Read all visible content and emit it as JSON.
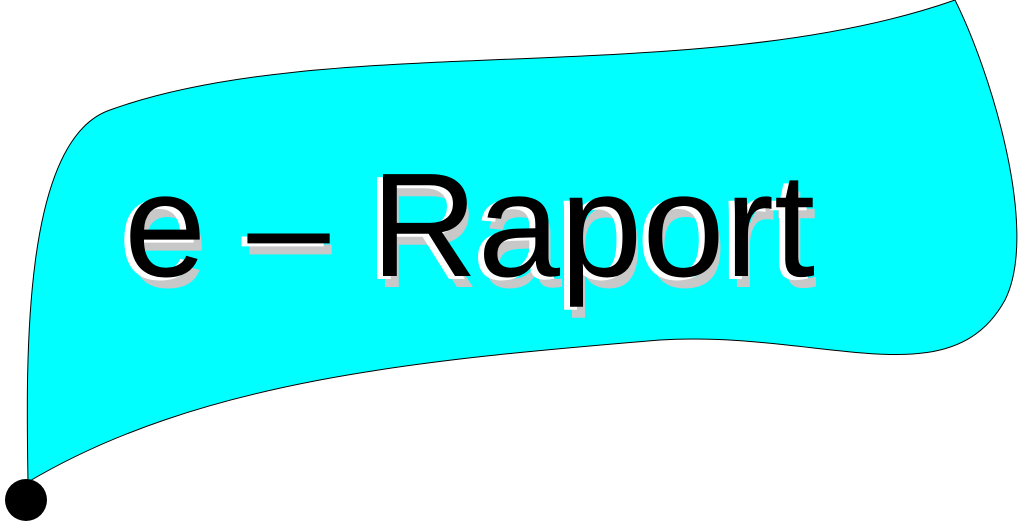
{
  "banner": {
    "title": "e – Raport",
    "fill_color": "#00ffff",
    "text_color": "#000000",
    "shadow_color": "#c8c8c8",
    "highlight_color": "#ffffff",
    "dot_color": "#000000"
  }
}
